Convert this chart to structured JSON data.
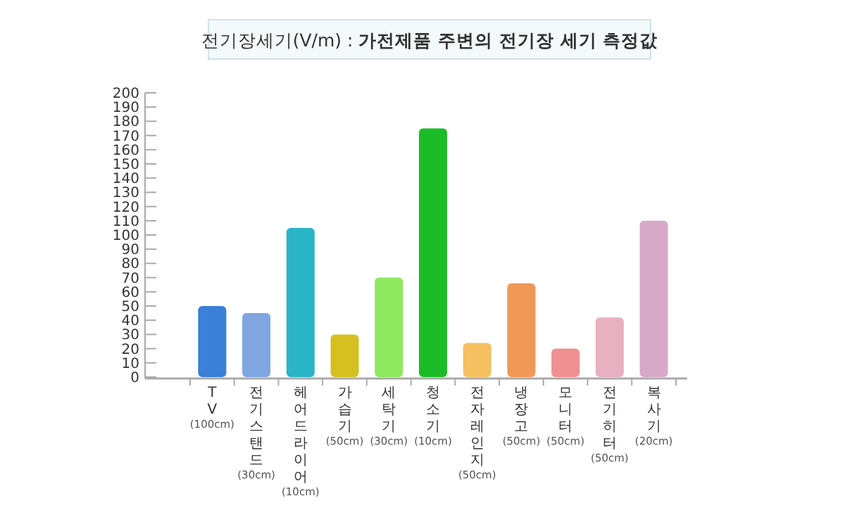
{
  "chart_data": {
    "type": "bar",
    "title": "전기장세기(V/m) : **가전제품 주변의 전기장 세기 측정값**",
    "categories": [
      "TV (100cm)",
      "전기스탠드 (30cm)",
      "헤어드라이어 (10cm)",
      "가습기 (50cm)",
      "세탁기 (30cm)",
      "청소기 (10cm)",
      "전자레인지 (50cm)",
      "냉장고 (50cm)",
      "모니터 (50cm)",
      "전기히터 (50cm)",
      "복사기 (20cm)"
    ],
    "values": [
      50,
      45,
      105,
      30,
      70,
      175,
      24,
      66,
      20,
      42,
      110
    ],
    "colors": [
      "#3a7fd8",
      "#7fa6e0",
      "#2bb5c8",
      "#d4c020",
      "#8fe860",
      "#1cbc28",
      "#f5c060",
      "#f09858",
      "#f09090",
      "#e8b0c0",
      "#d8a8c8"
    ],
    "ylim": [
      0,
      200
    ],
    "yticks": [
      0,
      10,
      20,
      30,
      40,
      50,
      60,
      70,
      80,
      90,
      100,
      110,
      120,
      130,
      140,
      150,
      160,
      170,
      180,
      190,
      200
    ],
    "grid": false
  }
}
